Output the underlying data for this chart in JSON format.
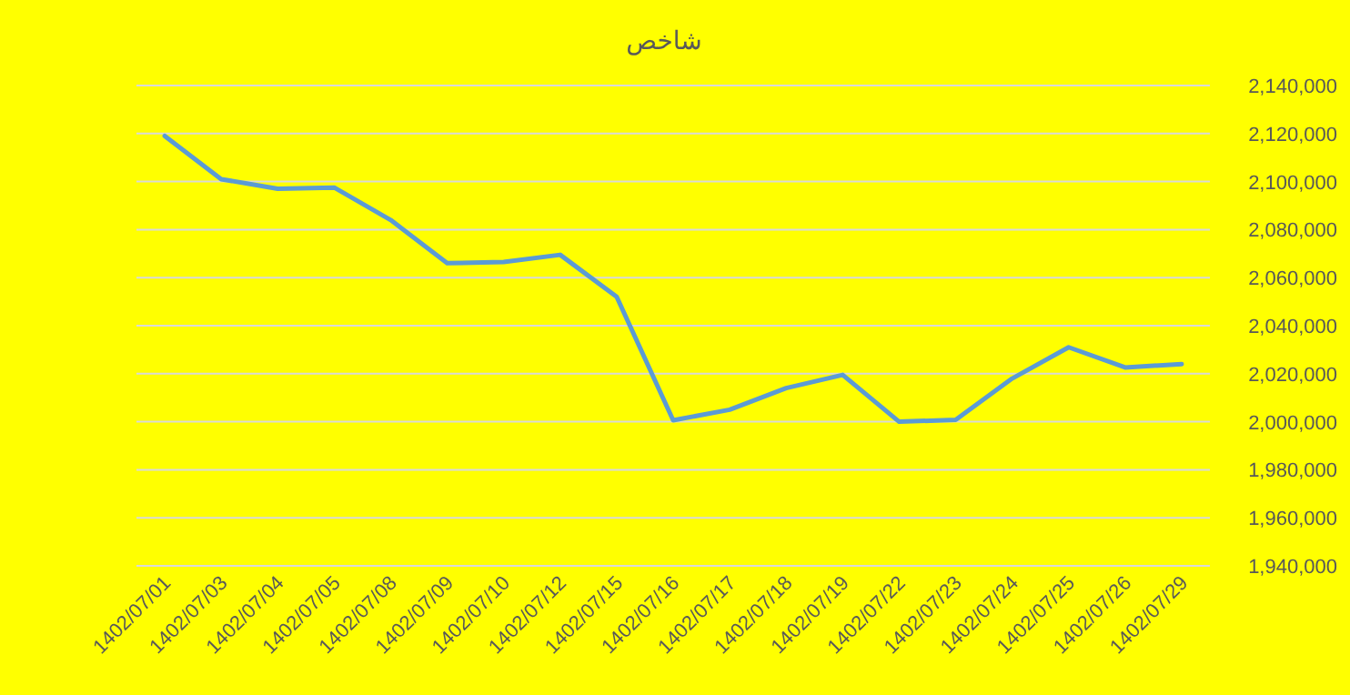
{
  "chart_data": {
    "type": "line",
    "title": "شاخص",
    "categories": [
      "1402/07/01",
      "1402/07/03",
      "1402/07/04",
      "1402/07/05",
      "1402/07/08",
      "1402/07/09",
      "1402/07/10",
      "1402/07/12",
      "1402/07/15",
      "1402/07/16",
      "1402/07/17",
      "1402/07/18",
      "1402/07/19",
      "1402/07/22",
      "1402/07/23",
      "1402/07/24",
      "1402/07/25",
      "1402/07/26",
      "1402/07/29"
    ],
    "series": [
      {
        "color": "#5b9bd5",
        "values": [
          2119000,
          2101000,
          2097000,
          2097500,
          2084000,
          2066000,
          2066500,
          2069500,
          2052000,
          2000600,
          2005000,
          2014000,
          2019500,
          2000000,
          2000800,
          2018000,
          2031000,
          2022600,
          2024000
        ]
      }
    ],
    "ylim": [
      1940000,
      2140000
    ],
    "yticks": [
      {
        "value": 1940000,
        "label": "1,940,000"
      },
      {
        "value": 1960000,
        "label": "1,960,000"
      },
      {
        "value": 1980000,
        "label": "1,980,000"
      },
      {
        "value": 2000000,
        "label": "2,000,000"
      },
      {
        "value": 2020000,
        "label": "2,020,000"
      },
      {
        "value": 2040000,
        "label": "2,040,000"
      },
      {
        "value": 2060000,
        "label": "2,060,000"
      },
      {
        "value": 2080000,
        "label": "2,080,000"
      },
      {
        "value": 2100000,
        "label": "2,100,000"
      },
      {
        "value": 2120000,
        "label": "2,120,000"
      },
      {
        "value": 2140000,
        "label": "2,140,000"
      }
    ],
    "grid": "y"
  }
}
